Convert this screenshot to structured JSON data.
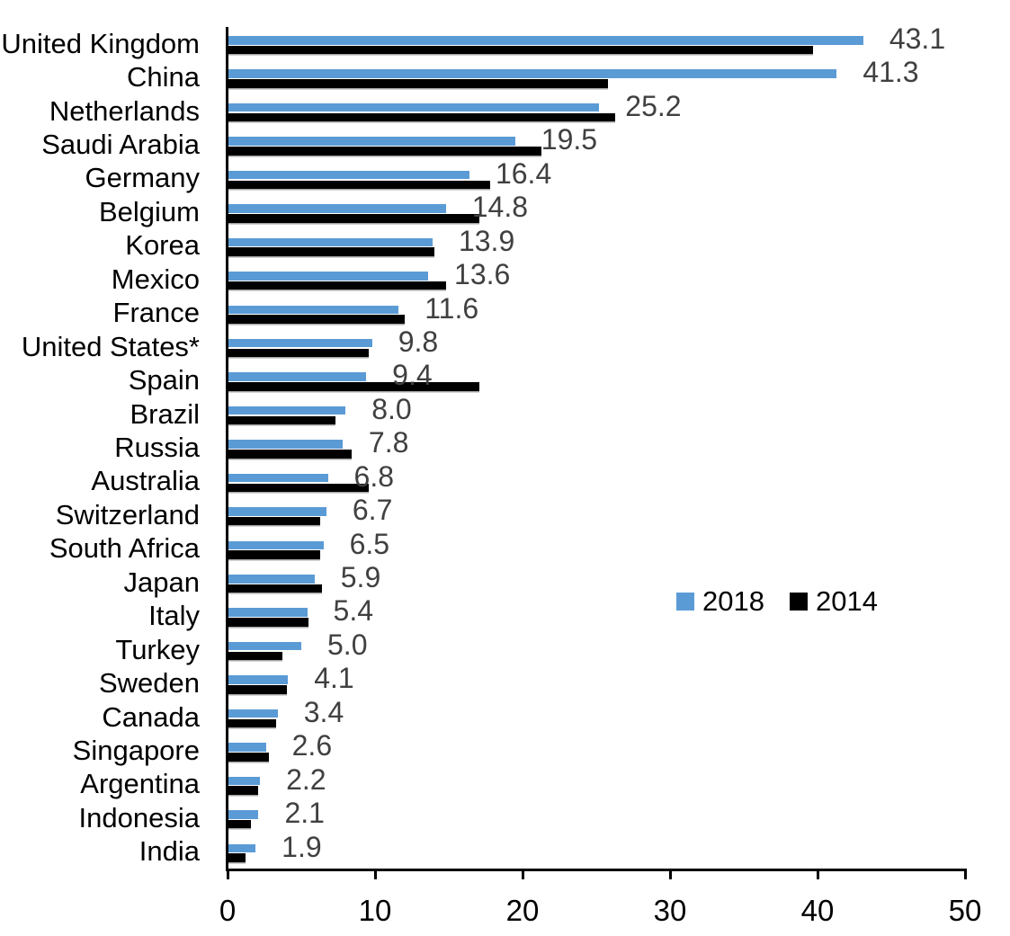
{
  "chart_data": {
    "type": "bar",
    "orientation": "horizontal",
    "title": "",
    "xlabel": "",
    "ylabel": "",
    "xlim": [
      0,
      50
    ],
    "x_ticks": [
      "0",
      "10",
      "20",
      "30",
      "40",
      "50"
    ],
    "grid": false,
    "legend_position": "middle-right",
    "categories": [
      "United Kingdom",
      "China",
      "Netherlands",
      "Saudi Arabia",
      "Germany",
      "Belgium",
      "Korea",
      "Mexico",
      "France",
      "United States*",
      "Spain",
      "Brazil",
      "Russia",
      "Australia",
      "Switzerland",
      "South Africa",
      "Japan",
      "Italy",
      "Turkey",
      "Sweden",
      "Canada",
      "Singapore",
      "Argentina",
      "Indonesia",
      "India"
    ],
    "series": [
      {
        "name": "2018",
        "color": "#5B9BD5",
        "values": [
          43.1,
          41.3,
          25.2,
          19.5,
          16.4,
          14.8,
          13.9,
          13.6,
          11.6,
          9.8,
          9.4,
          8.0,
          7.8,
          6.8,
          6.7,
          6.5,
          5.9,
          5.4,
          5.0,
          4.1,
          3.4,
          2.6,
          2.2,
          2.1,
          1.9
        ],
        "data_labels": [
          "43.1",
          "41.3",
          "25.2",
          "19.5",
          "16.4",
          "14.8",
          "13.9",
          "13.6",
          "11.6",
          "9.8",
          "9.4",
          "8.0",
          "7.8",
          "6.8",
          "6.7",
          "6.5",
          "5.9",
          "5.4",
          "5.0",
          "4.1",
          "3.4",
          "2.6",
          "2.2",
          "2.1",
          "1.9"
        ]
      },
      {
        "name": "2014",
        "color": "#000000",
        "values": [
          39.7,
          25.8,
          26.3,
          21.3,
          17.8,
          17.1,
          14.0,
          14.8,
          12.0,
          9.6,
          17.1,
          7.3,
          8.4,
          9.6,
          6.3,
          6.3,
          6.4,
          5.5,
          3.7,
          4.0,
          3.3,
          2.8,
          2.1,
          1.6,
          1.2
        ],
        "values_estimated": true
      }
    ],
    "value_label_color": "#404040"
  }
}
